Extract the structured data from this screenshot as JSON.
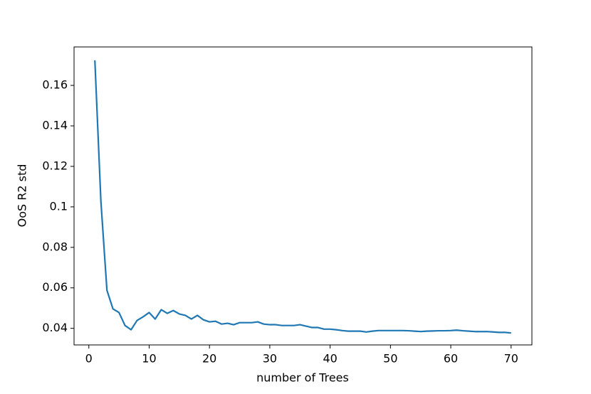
{
  "chart_data": {
    "type": "line",
    "x_label": "number of Trees",
    "y_label": "OoS R2 std",
    "x": [
      1,
      2,
      3,
      4,
      5,
      6,
      7,
      8,
      9,
      10,
      11,
      12,
      13,
      14,
      15,
      16,
      17,
      18,
      19,
      20,
      21,
      22,
      23,
      24,
      25,
      26,
      27,
      28,
      29,
      30,
      31,
      32,
      33,
      34,
      35,
      36,
      37,
      38,
      39,
      40,
      41,
      42,
      43,
      44,
      45,
      46,
      47,
      48,
      49,
      50,
      51,
      52,
      53,
      54,
      55,
      56,
      57,
      58,
      59,
      60,
      61,
      62,
      63,
      64,
      65,
      66,
      67,
      68,
      69,
      70
    ],
    "series": [
      {
        "color": "#1f77b4",
        "values": [
          0.1724,
          0.1027,
          0.0588,
          0.0496,
          0.0478,
          0.0414,
          0.0393,
          0.0439,
          0.0457,
          0.0478,
          0.0446,
          0.0492,
          0.0474,
          0.0488,
          0.0471,
          0.0464,
          0.0446,
          0.0464,
          0.0442,
          0.0432,
          0.0435,
          0.0421,
          0.0425,
          0.0418,
          0.0428,
          0.0428,
          0.0428,
          0.0432,
          0.0421,
          0.0418,
          0.0418,
          0.0414,
          0.0414,
          0.0414,
          0.0418,
          0.0411,
          0.0404,
          0.0404,
          0.0396,
          0.0396,
          0.0393,
          0.0389,
          0.0386,
          0.0386,
          0.0386,
          0.0382,
          0.0386,
          0.0389,
          0.0389,
          0.0389,
          0.0389,
          0.0389,
          0.0388,
          0.0386,
          0.0384,
          0.0386,
          0.0387,
          0.0388,
          0.0388,
          0.0389,
          0.0391,
          0.0388,
          0.0386,
          0.0384,
          0.0384,
          0.0384,
          0.0382,
          0.038,
          0.038,
          0.0377
        ]
      }
    ],
    "xlim": [
      -2.45,
      73.45
    ],
    "ylim": [
      0.0318,
      0.179
    ],
    "xticks": [
      0,
      10,
      20,
      30,
      40,
      50,
      60,
      70
    ],
    "yticks": [
      0.04,
      0.06,
      0.08,
      0.1,
      0.12,
      0.14,
      0.16
    ]
  }
}
